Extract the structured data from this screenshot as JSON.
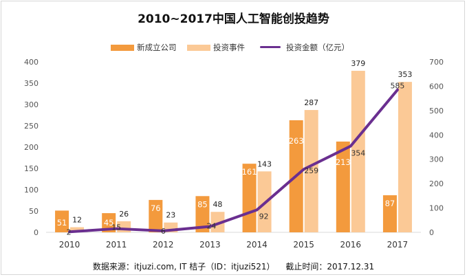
{
  "chart_data": {
    "type": "bar",
    "title": "2010~2017中国人工智能创投趋势",
    "categories": [
      "2010",
      "2011",
      "2012",
      "2013",
      "2014",
      "2015",
      "2016",
      "2017"
    ],
    "series": [
      {
        "name": "新成立公司",
        "kind": "bar",
        "axis": "left",
        "color": "#f39a3d",
        "values": [
          51,
          45,
          76,
          85,
          161,
          263,
          213,
          87
        ]
      },
      {
        "name": "投资事件",
        "kind": "bar",
        "axis": "left",
        "color": "#fbc996",
        "values": [
          12,
          26,
          23,
          48,
          143,
          287,
          379,
          353
        ]
      },
      {
        "name": "投资金额（亿元）",
        "kind": "line",
        "axis": "right",
        "color": "#6a2f90",
        "values": [
          2,
          15,
          6,
          24,
          92,
          259,
          354,
          585
        ]
      }
    ],
    "y_left": {
      "min": 0,
      "max": 400,
      "ticks": [
        0,
        50,
        100,
        150,
        200,
        250,
        300,
        350,
        400
      ]
    },
    "y_right": {
      "min": 0,
      "max": 700,
      "ticks": [
        0,
        100,
        200,
        300,
        400,
        500,
        600,
        700
      ]
    },
    "legend_position": "top-center",
    "grid": false
  },
  "footer": {
    "source": "数据来源：itjuzi.com, IT 桔子（ID：itjuzi521）",
    "cutoff": "截止时间：2017.12.31"
  }
}
